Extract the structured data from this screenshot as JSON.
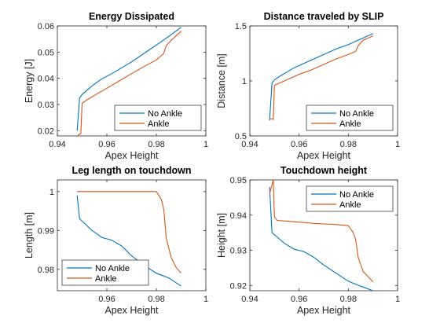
{
  "chart_data": [
    {
      "type": "line",
      "title": "Energy Dissipated",
      "xlabel": "Apex Height",
      "ylabel": "Energy [J]",
      "xlim": [
        0.94,
        1.0
      ],
      "ylim": [
        0.018,
        0.06
      ],
      "xticks": [
        0.94,
        0.96,
        0.98,
        1.0
      ],
      "xtick_labels": [
        "0.94",
        "0.96",
        "0.98",
        "1"
      ],
      "yticks": [
        0.02,
        0.03,
        0.04,
        0.05,
        0.06
      ],
      "ytick_labels": [
        "0.02",
        "0.03",
        "0.04",
        "0.05",
        "0.06"
      ],
      "legend": "bottom-right",
      "series": [
        {
          "name": "No Ankle",
          "color": "#0072BD",
          "x": [
            0.948,
            0.949,
            0.95,
            0.952,
            0.955,
            0.958,
            0.962,
            0.966,
            0.97,
            0.975,
            0.98,
            0.985,
            0.99
          ],
          "y": [
            0.02,
            0.0325,
            0.0338,
            0.0355,
            0.0378,
            0.0398,
            0.0418,
            0.044,
            0.0463,
            0.0495,
            0.0527,
            0.056,
            0.0595
          ]
        },
        {
          "name": "Ankle",
          "color": "#D95319",
          "x": [
            0.948,
            0.9495,
            0.95,
            0.952,
            0.955,
            0.96,
            0.965,
            0.97,
            0.975,
            0.98,
            0.983,
            0.984,
            0.986,
            0.99
          ],
          "y": [
            0.018,
            0.019,
            0.0305,
            0.0318,
            0.0335,
            0.0362,
            0.039,
            0.0418,
            0.0445,
            0.047,
            0.0495,
            0.0525,
            0.0545,
            0.058
          ]
        }
      ]
    },
    {
      "type": "line",
      "title": "Distance traveled by SLIP",
      "xlabel": "Apex Height",
      "ylabel": "Distance [m]",
      "xlim": [
        0.94,
        1.0
      ],
      "ylim": [
        0.5,
        1.5
      ],
      "xticks": [
        0.94,
        0.96,
        0.98,
        1.0
      ],
      "xtick_labels": [
        "0.94",
        "0.96",
        "0.98",
        "1"
      ],
      "yticks": [
        0.5,
        1.0,
        1.5
      ],
      "ytick_labels": [
        "0.5",
        "1",
        "1.5"
      ],
      "legend": "bottom-right",
      "series": [
        {
          "name": "No Ankle",
          "color": "#0072BD",
          "x": [
            0.948,
            0.949,
            0.95,
            0.952,
            0.955,
            0.958,
            0.962,
            0.966,
            0.97,
            0.975,
            0.98,
            0.985,
            0.99
          ],
          "y": [
            0.64,
            0.98,
            1.01,
            1.04,
            1.08,
            1.12,
            1.16,
            1.2,
            1.24,
            1.29,
            1.33,
            1.38,
            1.43
          ]
        },
        {
          "name": "Ankle",
          "color": "#D95319",
          "x": [
            0.948,
            0.9495,
            0.95,
            0.952,
            0.955,
            0.96,
            0.965,
            0.97,
            0.975,
            0.98,
            0.983,
            0.984,
            0.986,
            0.99
          ],
          "y": [
            0.66,
            0.65,
            0.96,
            0.98,
            1.01,
            1.06,
            1.1,
            1.15,
            1.2,
            1.24,
            1.27,
            1.32,
            1.37,
            1.41
          ]
        }
      ]
    },
    {
      "type": "line",
      "title": "Leg length on touchdown",
      "xlabel": "Apex Height",
      "ylabel": "Length [m]",
      "xlim": [
        0.94,
        1.0
      ],
      "ylim": [
        0.9745,
        1.003
      ],
      "xticks": [
        0.96,
        0.98,
        1.0
      ],
      "xtick_labels": [
        "0.96",
        "0.98",
        "1"
      ],
      "yticks": [
        0.98,
        0.99,
        1.0
      ],
      "ytick_labels": [
        "0.98",
        "0.99",
        "1"
      ],
      "legend": "bottom-left",
      "series": [
        {
          "name": "No Ankle",
          "color": "#0072BD",
          "x": [
            0.948,
            0.949,
            0.951,
            0.954,
            0.958,
            0.962,
            0.966,
            0.97,
            0.975,
            0.98,
            0.985,
            0.99
          ],
          "y": [
            0.999,
            0.993,
            0.9918,
            0.99,
            0.9882,
            0.9875,
            0.986,
            0.9835,
            0.981,
            0.979,
            0.9778,
            0.9757
          ]
        },
        {
          "name": "Ankle",
          "color": "#D95319",
          "x": [
            0.948,
            0.955,
            0.96,
            0.965,
            0.97,
            0.975,
            0.98,
            0.982,
            0.983,
            0.984,
            0.986,
            0.988,
            0.99
          ],
          "y": [
            1.0,
            1.0,
            1.0,
            1.0,
            1.0,
            1.0,
            1.0,
            0.998,
            0.9955,
            0.988,
            0.983,
            0.9805,
            0.979
          ]
        }
      ]
    },
    {
      "type": "line",
      "title": "Touchdown height",
      "xlabel": "Apex Height",
      "ylabel": "Height [m]",
      "xlim": [
        0.94,
        1.0
      ],
      "ylim": [
        0.9185,
        0.95
      ],
      "xticks": [
        0.94,
        0.96,
        0.98,
        1.0
      ],
      "xtick_labels": [
        "0.94",
        "0.96",
        "0.98",
        "1"
      ],
      "yticks": [
        0.92,
        0.93,
        0.94,
        0.95
      ],
      "ytick_labels": [
        "0.92",
        "0.93",
        "0.94",
        "0.95"
      ],
      "legend": "top-right",
      "series": [
        {
          "name": "No Ankle",
          "color": "#0072BD",
          "x": [
            0.948,
            0.949,
            0.951,
            0.954,
            0.958,
            0.962,
            0.966,
            0.97,
            0.975,
            0.98,
            0.985,
            0.99
          ],
          "y": [
            0.948,
            0.935,
            0.9338,
            0.932,
            0.9303,
            0.9296,
            0.928,
            0.9258,
            0.9235,
            0.9212,
            0.9198,
            0.9185
          ]
        },
        {
          "name": "Ankle",
          "color": "#D95319",
          "x": [
            0.948,
            0.9495,
            0.95,
            0.951,
            0.955,
            0.96,
            0.965,
            0.97,
            0.975,
            0.98,
            0.982,
            0.983,
            0.984,
            0.986,
            0.99
          ],
          "y": [
            0.946,
            0.95,
            0.9395,
            0.9385,
            0.9383,
            0.938,
            0.9377,
            0.9375,
            0.9373,
            0.937,
            0.935,
            0.933,
            0.928,
            0.924,
            0.921
          ]
        }
      ]
    }
  ]
}
